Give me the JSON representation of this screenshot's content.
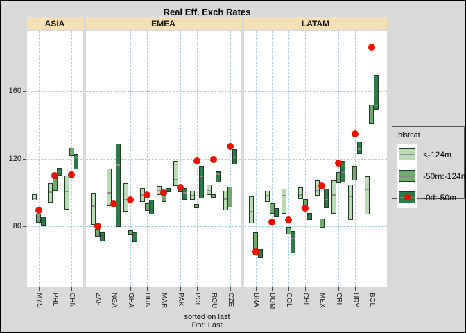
{
  "title": "Real Eff. Exch Rates",
  "caption": {
    "line1": "sorted on last",
    "line2": "Dot: Last"
  },
  "legend": {
    "title": "histcat",
    "items": [
      {
        "label": "<-124m",
        "category": "light"
      },
      {
        "label": "-50m:-124m",
        "category": "medium"
      },
      {
        "label": "-0d:-50m",
        "category": "dark_with_dot"
      }
    ]
  },
  "colors": {
    "figure_bg": "#d9d9d9",
    "strip_bg": "#f5dfb3",
    "panel_bg": "#ffffff",
    "grid_blue": "#a9cfe0",
    "light_green": "#b8ddb2",
    "medium_green": "#6fae68",
    "dark_green": "#2a7b45",
    "box_border": "#203a26",
    "median_gray": "#8c8c8c",
    "dot_red": "#ee1100"
  },
  "chart_data": {
    "type": "range-box",
    "title": "Real Eff. Exch Rates",
    "y_ticks": [
      160,
      120,
      80
    ],
    "ylim": [
      45,
      195
    ],
    "grid": "dashed both axes",
    "legend_position": "right",
    "facets": [
      {
        "label": "ASIA",
        "countries": [
          {
            "code": "MYS",
            "light": {
              "min": 95,
              "max": 99,
              "mid": 97
            },
            "medium": {
              "min": 82,
              "max": 87.5,
              "mid": 86
            },
            "dark": {
              "min": 80,
              "max": 85.5,
              "mid": null
            },
            "last": 89.5
          },
          {
            "code": "PHL",
            "light": {
              "min": 94,
              "max": 105.5,
              "mid": 100.5
            },
            "medium": {
              "min": 101,
              "max": 108.5,
              "mid": 106.5
            },
            "dark": {
              "min": 110,
              "max": 114.5,
              "mid": 113
            },
            "last": 110
          },
          {
            "code": "CHN",
            "light": {
              "min": 90,
              "max": 110,
              "mid": 101
            },
            "medium": {
              "min": 121.5,
              "max": 126.5,
              "mid": 125
            },
            "dark": {
              "min": 113.5,
              "max": 122.5,
              "mid": 121
            },
            "last": 110.5
          }
        ]
      },
      {
        "label": "EMEA",
        "countries": [
          {
            "code": "ZAF",
            "light": {
              "min": 81,
              "max": 99.5,
              "mid": 92.5
            },
            "medium": {
              "min": 74,
              "max": 78.5,
              "mid": 74.5
            },
            "dark": {
              "min": 71,
              "max": 76.5,
              "mid": null
            },
            "last": 80
          },
          {
            "code": "NGA",
            "light": {
              "min": 92,
              "max": 114,
              "mid": 100
            },
            "medium": null,
            "dark": {
              "min": 79.5,
              "max": 129,
              "mid": 116.5
            },
            "last": 93
          },
          {
            "code": "GHA",
            "light": {
              "min": 88.5,
              "max": 105.5,
              "mid": 96
            },
            "medium": {
              "min": 74.5,
              "max": 77.5,
              "mid": 76
            },
            "dark": {
              "min": 70.5,
              "max": 76.5,
              "mid": null
            },
            "last": 95.5
          },
          {
            "code": "HUN",
            "light": {
              "min": 94.5,
              "max": 102.5,
              "mid": 99
            },
            "medium": {
              "min": 89,
              "max": 93.5,
              "mid": 91
            },
            "dark": {
              "min": 87,
              "max": 95.5,
              "mid": null
            },
            "last": 98.5
          },
          {
            "code": "MAR",
            "light": {
              "min": 98.5,
              "max": 104,
              "mid": 101.5
            },
            "medium": {
              "min": 94.5,
              "max": 100,
              "mid": 97
            },
            "dark": {
              "min": 100,
              "max": 102.5,
              "mid": null
            },
            "last": 99.5
          },
          {
            "code": "PAK",
            "light": {
              "min": 104,
              "max": 118.5,
              "mid": 108
            },
            "medium": {
              "min": 100,
              "max": 104.5,
              "mid": 103
            },
            "dark": {
              "min": 95.5,
              "max": 102.5,
              "mid": 100
            },
            "last": 103
          },
          {
            "code": "POL",
            "light": {
              "min": 95.5,
              "max": 101,
              "mid": 98.5
            },
            "medium": {
              "min": 90.5,
              "max": 93,
              "mid": null
            },
            "dark": {
              "min": 96.5,
              "max": 115.5,
              "mid": 110
            },
            "last": 118.5
          },
          {
            "code": "ROU",
            "light": {
              "min": 98.5,
              "max": 104.5,
              "mid": 101.5
            },
            "medium": {
              "min": 97,
              "max": 99,
              "mid": null
            },
            "dark": {
              "min": 106,
              "max": 112.5,
              "mid": 111
            },
            "last": 119.5
          },
          {
            "code": "CZE",
            "light": {
              "min": 89.5,
              "max": 101,
              "mid": 96.5
            },
            "medium": {
              "min": 91,
              "max": 103.5,
              "mid": 102
            },
            "dark": {
              "min": 116.5,
              "max": 125.5,
              "mid": 121
            },
            "last": 127
          }
        ]
      },
      {
        "label": "LATAM",
        "countries": [
          {
            "code": "BRA",
            "light": {
              "min": 81.5,
              "max": 97.5,
              "mid": 89
            },
            "medium": {
              "min": 63,
              "max": 76.5,
              "mid": 74
            },
            "dark": {
              "min": 61,
              "max": 66.5,
              "mid": null
            },
            "last": 65
          },
          {
            "code": "DOM",
            "light": {
              "min": 94.5,
              "max": 101,
              "mid": 98.5
            },
            "medium": {
              "min": 87.5,
              "max": 93.5,
              "mid": 90
            },
            "dark": {
              "min": 85.5,
              "max": 90.5,
              "mid": null
            },
            "last": 82.5
          },
          {
            "code": "COL",
            "light": {
              "min": 87.5,
              "max": 102,
              "mid": 98.5
            },
            "medium": {
              "min": 75,
              "max": 79.5,
              "mid": 77
            },
            "dark": {
              "min": 64,
              "max": 77,
              "mid": 73
            },
            "last": 83.5
          },
          {
            "code": "CHL",
            "light": {
              "min": 96,
              "max": 103,
              "mid": 99
            },
            "medium": {
              "min": 90,
              "max": 96,
              "mid": 93.5
            },
            "dark": {
              "min": 83.5,
              "max": 88,
              "mid": null
            },
            "last": 90.5
          },
          {
            "code": "MEX",
            "light": {
              "min": 98,
              "max": 107,
              "mid": 101.5
            },
            "medium": {
              "min": 79,
              "max": 84.5,
              "mid": 82
            },
            "dark": {
              "min": 90.5,
              "max": 102,
              "mid": 96
            },
            "last": 104
          },
          {
            "code": "CRI",
            "light": {
              "min": 87.5,
              "max": 107,
              "mid": 99
            },
            "medium": {
              "min": 105.5,
              "max": 112,
              "mid": 108
            },
            "dark": {
              "min": 106,
              "max": 118.5,
              "mid": 112
            },
            "last": 117.5
          },
          {
            "code": "URY",
            "light": {
              "min": 83.5,
              "max": 104.5,
              "mid": 98
            },
            "medium": {
              "min": 107,
              "max": 115.5,
              "mid": 111
            },
            "dark": {
              "min": 122.5,
              "max": 130,
              "mid": 126
            },
            "last": 134.5
          },
          {
            "code": "BOL",
            "light": {
              "min": 87,
              "max": 109.5,
              "mid": 102
            },
            "medium": {
              "min": 140.5,
              "max": 152,
              "mid": 147.5
            },
            "dark": {
              "min": 149,
              "max": 169.5,
              "mid": 152
            },
            "last": 186
          }
        ]
      }
    ]
  }
}
